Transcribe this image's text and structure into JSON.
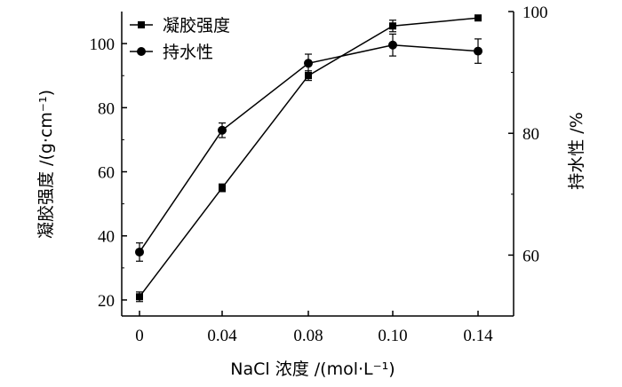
{
  "chart_data": {
    "type": "line",
    "x": [
      0,
      0.04,
      0.08,
      0.1,
      0.14
    ],
    "x_tick_labels": [
      "0",
      "0.04",
      "0.08",
      "0.10",
      "0.14"
    ],
    "xlabel": "NaCl 浓度 /(mol·L⁻¹)",
    "ylabel_left": "凝胶强度 /(g·cm⁻¹)",
    "ylabel_right": "持水性 /%",
    "ylim_left": [
      15,
      110
    ],
    "ylim_right": [
      50,
      100
    ],
    "yticks_left": [
      20,
      40,
      60,
      80,
      100
    ],
    "yticks_right": [
      60,
      80,
      100
    ],
    "grid": false,
    "legend_position": "top-left",
    "series": [
      {
        "name": "凝胶强度",
        "axis": "left",
        "marker": "square",
        "values": [
          21,
          55,
          90,
          105.5,
          108
        ],
        "errors": [
          1.5,
          1.2,
          1.5,
          1.8,
          0.8
        ]
      },
      {
        "name": "持水性",
        "axis": "right",
        "marker": "circle",
        "values": [
          60.5,
          80.5,
          91.5,
          94.5,
          93.5
        ],
        "errors": [
          1.5,
          1.2,
          1.5,
          1.8,
          2.0
        ]
      }
    ]
  }
}
